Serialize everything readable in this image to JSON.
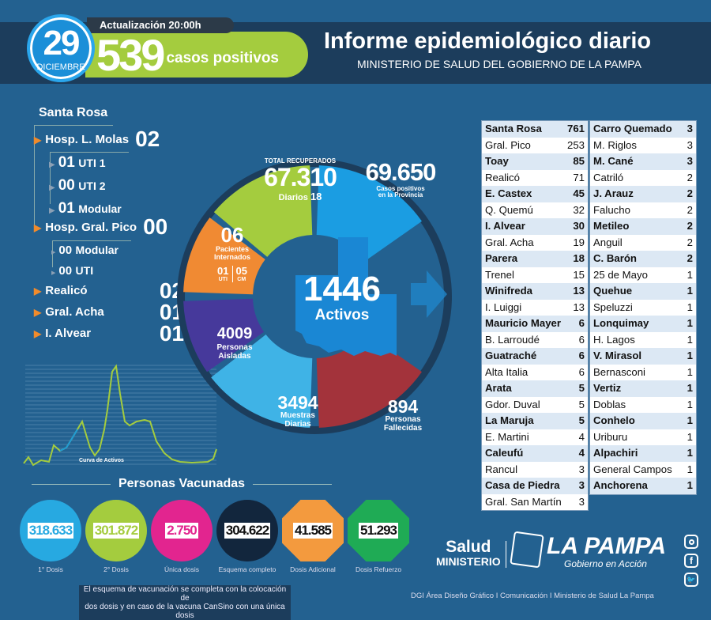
{
  "header": {
    "day": "29",
    "month": "DICIEMBRE",
    "update": "Actualización 20:00h",
    "cases": "539",
    "cases_label": "casos positivos",
    "title": "Informe epidemiológico diario",
    "subtitle": "MINISTERIO DE SALUD DEL GOBIERNO DE LA PAMPA"
  },
  "hospitals": {
    "city": "Santa Rosa",
    "molas": {
      "label": "Hosp. L. Molas",
      "value": "02",
      "subs": [
        {
          "v": "01",
          "l": "UTI 1"
        },
        {
          "v": "00",
          "l": "UTI 2"
        },
        {
          "v": "01",
          "l": "Modular"
        }
      ]
    },
    "pico": {
      "label": "Hosp. Gral. Pico",
      "value": "00",
      "subs": [
        {
          "v": "00",
          "l": "Modular"
        },
        {
          "v": "00",
          "l": "UTI"
        }
      ]
    },
    "others": [
      {
        "label": "Realicó",
        "value": "02"
      },
      {
        "label": "Gral. Acha",
        "value": "01"
      },
      {
        "label": "I. Alvear",
        "value": "01"
      }
    ]
  },
  "chart": {
    "label": "Curva de Activos"
  },
  "ring": {
    "recovered": {
      "top": "TOTAL RECUPERADOS",
      "value": "67.310",
      "daily_label": "Diarios",
      "daily": "18"
    },
    "positive": {
      "value": "69.650",
      "l1": "Casos positivos",
      "l2": "en la Provincia"
    },
    "hospitalized": {
      "value": "06",
      "l1": "Pacientes",
      "l2": "Internados",
      "uti": "01",
      "uti_l": "UTI",
      "cm": "05",
      "cm_l": "CM"
    },
    "isolated": {
      "value": "4009",
      "l1": "Personas",
      "l2": "Aisladas"
    },
    "samples": {
      "value": "3494",
      "l1": "Muestras",
      "l2": "Diarias"
    },
    "deaths": {
      "value": "894",
      "l1": "Personas",
      "l2": "Fallecidas"
    },
    "active": {
      "value": "1446",
      "label": "Activos"
    }
  },
  "table": {
    "col1": [
      [
        "Santa Rosa",
        "761"
      ],
      [
        "Gral. Pico",
        "253"
      ],
      [
        "Toay",
        "85"
      ],
      [
        "Realicó",
        "71"
      ],
      [
        "E. Castex",
        "45"
      ],
      [
        "Q. Quemú",
        "32"
      ],
      [
        "I. Alvear",
        "30"
      ],
      [
        "Gral. Acha",
        "19"
      ],
      [
        "Parera",
        "18"
      ],
      [
        "Trenel",
        "15"
      ],
      [
        "Winifreda",
        "13"
      ],
      [
        "I. Luiggi",
        "13"
      ],
      [
        "Mauricio Mayer",
        "6"
      ],
      [
        "B. Larroudé",
        "6"
      ],
      [
        "Guatraché",
        "6"
      ],
      [
        "Alta Italia",
        "6"
      ],
      [
        "Arata",
        "5"
      ],
      [
        "Gdor. Duval",
        "5"
      ],
      [
        "La Maruja",
        "5"
      ],
      [
        "E. Martini",
        "4"
      ],
      [
        "Caleufú",
        "4"
      ],
      [
        "Rancul",
        "3"
      ],
      [
        "Casa de Piedra",
        "3"
      ],
      [
        "Gral. San Martín",
        "3"
      ]
    ],
    "col2": [
      [
        "Carro Quemado",
        "3"
      ],
      [
        "M. Riglos",
        "3"
      ],
      [
        "M. Cané",
        "3"
      ],
      [
        "Catriló",
        "2"
      ],
      [
        "J. Arauz",
        "2"
      ],
      [
        "Falucho",
        "2"
      ],
      [
        "Metileo",
        "2"
      ],
      [
        "Anguil",
        "2"
      ],
      [
        "C. Barón",
        "2"
      ],
      [
        "25 de Mayo",
        "1"
      ],
      [
        "Quehue",
        "1"
      ],
      [
        "Speluzzi",
        "1"
      ],
      [
        "Lonquimay",
        "1"
      ],
      [
        "H. Lagos",
        "1"
      ],
      [
        "V. Mirasol",
        "1"
      ],
      [
        "Bernasconi",
        "1"
      ],
      [
        "Vertiz",
        "1"
      ],
      [
        "Doblas",
        "1"
      ],
      [
        "Conhelo",
        "1"
      ],
      [
        "Uriburu",
        "1"
      ],
      [
        "Alpachiri",
        "1"
      ],
      [
        "General Campos",
        "1"
      ],
      [
        "Anchorena",
        "1"
      ]
    ]
  },
  "vaccines": {
    "title": "Personas Vacunadas",
    "items": [
      {
        "value": "318.633",
        "label": "1° Dosis",
        "color": "#27a9e1"
      },
      {
        "value": "301.872",
        "label": "2° Dosis",
        "color": "#a4cc3e"
      },
      {
        "value": "2.750",
        "label": "Única dosis",
        "color": "#e2258f"
      },
      {
        "value": "304.622",
        "label": "Esquema completo",
        "color": "#12263d"
      },
      {
        "value": "41.585",
        "label": "Dosis Adicional",
        "color": "#f39a3e"
      },
      {
        "value": "51.293",
        "label": "Dosis Refuerzo",
        "color": "#1fab55"
      }
    ],
    "note1": "El esquema de vacunación se completa con la colocación de",
    "note2": "dos dosis y en caso de la vacuna CanSino con una única dosis"
  },
  "footer": {
    "salud": "Salud",
    "ministerio": "MINISTERIO",
    "lapampa": "LA PAMPA",
    "gobierno": "Gobierno en Acción",
    "credits": "DGI Área Diseño Gráfico  I Comunicación I Ministerio de Salud La Pampa"
  }
}
